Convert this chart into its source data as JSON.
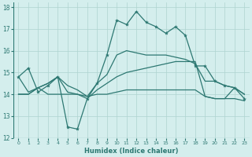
{
  "title": "",
  "xlabel": "Humidex (Indice chaleur)",
  "ylabel": "",
  "bg_color": "#d4eeed",
  "grid_color": "#aed4d0",
  "line_color": "#2d7872",
  "xlim": [
    -0.5,
    23.5
  ],
  "ylim": [
    12,
    18.2
  ],
  "yticks": [
    12,
    13,
    14,
    15,
    16,
    17,
    18
  ],
  "xticks": [
    0,
    1,
    2,
    3,
    4,
    5,
    6,
    7,
    8,
    9,
    10,
    11,
    12,
    13,
    14,
    15,
    16,
    17,
    18,
    19,
    20,
    21,
    22,
    23
  ],
  "series": [
    {
      "x": [
        0,
        1,
        2,
        3,
        4,
        5,
        6,
        7,
        8,
        9,
        10,
        11,
        12,
        13,
        14,
        15,
        16,
        17,
        18,
        19,
        20,
        21,
        22,
        23
      ],
      "y": [
        14.8,
        15.2,
        14.1,
        14.4,
        14.8,
        12.5,
        12.4,
        13.8,
        14.5,
        15.8,
        17.4,
        17.2,
        17.8,
        17.3,
        17.1,
        16.8,
        17.1,
        16.7,
        15.3,
        15.3,
        14.6,
        14.4,
        14.3,
        13.8
      ],
      "marker": "star",
      "lw": 0.9
    },
    {
      "x": [
        0,
        1,
        2,
        3,
        4,
        5,
        6,
        7,
        8,
        9,
        10,
        11,
        12,
        13,
        14,
        15,
        16,
        17,
        18,
        19,
        20,
        21,
        22,
        23
      ],
      "y": [
        14.0,
        14.0,
        14.3,
        14.5,
        14.8,
        14.1,
        14.0,
        13.8,
        14.2,
        14.5,
        14.8,
        15.0,
        15.1,
        15.2,
        15.3,
        15.4,
        15.5,
        15.5,
        15.5,
        13.9,
        13.8,
        13.8,
        14.3,
        14.0
      ],
      "marker": "none",
      "lw": 0.9
    },
    {
      "x": [
        0,
        1,
        2,
        3,
        4,
        5,
        6,
        7,
        8,
        9,
        10,
        11,
        12,
        13,
        14,
        15,
        16,
        17,
        18,
        19,
        20,
        21,
        22,
        23
      ],
      "y": [
        14.0,
        14.0,
        14.3,
        14.0,
        14.0,
        14.0,
        14.0,
        13.9,
        14.0,
        14.0,
        14.1,
        14.2,
        14.2,
        14.2,
        14.2,
        14.2,
        14.2,
        14.2,
        14.2,
        13.9,
        13.8,
        13.8,
        13.8,
        13.7
      ],
      "marker": "none",
      "lw": 0.9
    },
    {
      "x": [
        0,
        1,
        2,
        3,
        4,
        5,
        6,
        7,
        8,
        9,
        10,
        11,
        12,
        13,
        14,
        15,
        16,
        17,
        18,
        19,
        20,
        21,
        22,
        23
      ],
      "y": [
        14.8,
        14.1,
        14.3,
        14.5,
        14.8,
        14.4,
        14.2,
        13.9,
        14.5,
        14.9,
        15.8,
        16.0,
        15.9,
        15.8,
        15.8,
        15.8,
        15.7,
        15.6,
        15.4,
        14.6,
        14.6,
        14.4,
        14.3,
        14.0
      ],
      "marker": "none",
      "lw": 0.9
    }
  ]
}
